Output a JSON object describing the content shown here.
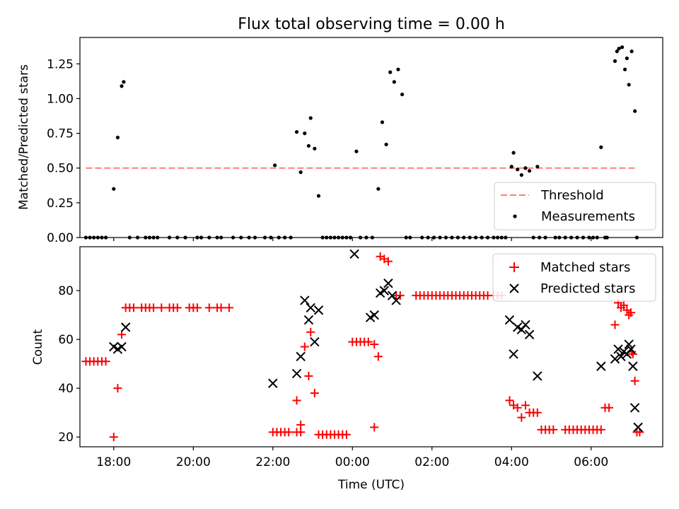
{
  "chart_data": [
    {
      "type": "scatter",
      "title": "Flux total observing time = 0.00 h",
      "xlabel": "",
      "ylabel": "Matched/Predicted stars",
      "x_unit": "hours since 00:00 UTC (negative = previous evening)",
      "xlim": [
        -6.85,
        7.8
      ],
      "ylim": [
        0,
        1.44
      ],
      "yticks": [
        0.0,
        0.25,
        0.5,
        0.75,
        1.0,
        1.25
      ],
      "ytick_labels": [
        "0.00",
        "0.25",
        "0.50",
        "0.75",
        "1.00",
        "1.25"
      ],
      "threshold": {
        "name": "Threshold",
        "value": 0.5,
        "x_range": [
          -6.7,
          7.1
        ],
        "color": "#ff7f7f"
      },
      "series": [
        {
          "name": "Measurements",
          "color": "#000000",
          "marker": "dot",
          "points": [
            [
              -6.7,
              0
            ],
            [
              -6.6,
              0
            ],
            [
              -6.5,
              0
            ],
            [
              -6.4,
              0
            ],
            [
              -6.3,
              0
            ],
            [
              -6.2,
              0
            ],
            [
              -6.0,
              0.35
            ],
            [
              -5.9,
              0.72
            ],
            [
              -5.8,
              1.09
            ],
            [
              -5.75,
              1.12
            ],
            [
              -5.6,
              0
            ],
            [
              -5.4,
              0
            ],
            [
              -5.2,
              0
            ],
            [
              -5.1,
              0
            ],
            [
              -5.0,
              0
            ],
            [
              -4.9,
              0
            ],
            [
              -4.6,
              0
            ],
            [
              -4.4,
              0
            ],
            [
              -4.2,
              0
            ],
            [
              -3.9,
              0
            ],
            [
              -3.8,
              0
            ],
            [
              -3.6,
              0
            ],
            [
              -3.4,
              0
            ],
            [
              -3.3,
              0
            ],
            [
              -3.0,
              0
            ],
            [
              -2.8,
              0
            ],
            [
              -2.6,
              0
            ],
            [
              -2.45,
              0
            ],
            [
              -2.2,
              0
            ],
            [
              -2.05,
              0
            ],
            [
              -1.95,
              0.52
            ],
            [
              -1.85,
              0
            ],
            [
              -1.7,
              0
            ],
            [
              -1.55,
              0
            ],
            [
              -1.4,
              0.76
            ],
            [
              -1.3,
              0.47
            ],
            [
              -1.2,
              0.75
            ],
            [
              -1.1,
              0.66
            ],
            [
              -1.05,
              0.86
            ],
            [
              -0.95,
              0.64
            ],
            [
              -0.85,
              0.3
            ],
            [
              -0.75,
              0
            ],
            [
              -0.65,
              0
            ],
            [
              -0.55,
              0
            ],
            [
              -0.45,
              0
            ],
            [
              -0.35,
              0
            ],
            [
              -0.25,
              0
            ],
            [
              -0.15,
              0
            ],
            [
              -0.05,
              0
            ],
            [
              0.1,
              0.62
            ],
            [
              0.2,
              0
            ],
            [
              0.35,
              0
            ],
            [
              0.5,
              0
            ],
            [
              0.65,
              0.35
            ],
            [
              0.75,
              0.83
            ],
            [
              0.85,
              0.67
            ],
            [
              0.95,
              1.19
            ],
            [
              1.05,
              1.12
            ],
            [
              1.15,
              1.21
            ],
            [
              1.25,
              1.03
            ],
            [
              1.35,
              0
            ],
            [
              1.45,
              0
            ],
            [
              1.75,
              0
            ],
            [
              1.9,
              0
            ],
            [
              2.05,
              0
            ],
            [
              2.2,
              0
            ],
            [
              2.35,
              0
            ],
            [
              2.5,
              0
            ],
            [
              2.65,
              0
            ],
            [
              2.8,
              0
            ],
            [
              2.95,
              0
            ],
            [
              3.1,
              0
            ],
            [
              3.25,
              0
            ],
            [
              3.4,
              0
            ],
            [
              3.55,
              0
            ],
            [
              3.65,
              0
            ],
            [
              3.75,
              0
            ],
            [
              3.85,
              0
            ],
            [
              4.0,
              0.51
            ],
            [
              4.05,
              0.61
            ],
            [
              4.15,
              0.49
            ],
            [
              4.25,
              0.45
            ],
            [
              4.35,
              0.5
            ],
            [
              4.45,
              0.48
            ],
            [
              4.55,
              0
            ],
            [
              4.7,
              0
            ],
            [
              4.65,
              0.51
            ],
            [
              4.85,
              0
            ],
            [
              5.1,
              0
            ],
            [
              5.2,
              0
            ],
            [
              5.35,
              0
            ],
            [
              5.5,
              0
            ],
            [
              5.65,
              0
            ],
            [
              5.8,
              0
            ],
            [
              5.95,
              0
            ],
            [
              6.05,
              0
            ],
            [
              6.15,
              0
            ],
            [
              6.25,
              0.65
            ],
            [
              6.4,
              0
            ],
            [
              6.35,
              0
            ],
            [
              6.6,
              1.27
            ],
            [
              6.65,
              1.34
            ],
            [
              6.7,
              1.36
            ],
            [
              6.78,
              1.37
            ],
            [
              6.85,
              1.21
            ],
            [
              6.9,
              1.29
            ],
            [
              6.95,
              1.1
            ],
            [
              7.02,
              1.34
            ],
            [
              7.1,
              0.91
            ],
            [
              7.15,
              0
            ]
          ]
        }
      ],
      "legend": {
        "placement": "lower-right",
        "entries": [
          "Threshold",
          "Measurements"
        ]
      }
    },
    {
      "type": "scatter",
      "title": "",
      "xlabel": "Time (UTC)",
      "ylabel": "Count",
      "x_unit": "hours since 00:00 UTC (negative = previous evening)",
      "xlim": [
        -6.85,
        7.8
      ],
      "ylim": [
        16,
        98
      ],
      "yticks": [
        20,
        40,
        60,
        80
      ],
      "ytick_labels": [
        "20",
        "40",
        "60",
        "80"
      ],
      "xticks": [
        -6,
        -4,
        -2,
        0,
        2,
        4,
        6
      ],
      "xtick_labels": [
        "18:00",
        "20:00",
        "22:00",
        "00:00",
        "02:00",
        "04:00",
        "06:00"
      ],
      "series": [
        {
          "name": "Matched stars",
          "color": "#ff0000",
          "marker": "plus",
          "points": [
            [
              -6.7,
              51
            ],
            [
              -6.6,
              51
            ],
            [
              -6.5,
              51
            ],
            [
              -6.4,
              51
            ],
            [
              -6.3,
              51
            ],
            [
              -6.2,
              51
            ],
            [
              -6.0,
              20
            ],
            [
              -5.9,
              40
            ],
            [
              -5.8,
              62
            ],
            [
              -5.7,
              73
            ],
            [
              -5.6,
              73
            ],
            [
              -5.5,
              73
            ],
            [
              -5.3,
              73
            ],
            [
              -5.2,
              73
            ],
            [
              -5.1,
              73
            ],
            [
              -5.0,
              73
            ],
            [
              -4.8,
              73
            ],
            [
              -4.6,
              73
            ],
            [
              -4.5,
              73
            ],
            [
              -4.4,
              73
            ],
            [
              -4.1,
              73
            ],
            [
              -4.0,
              73
            ],
            [
              -3.9,
              73
            ],
            [
              -3.6,
              73
            ],
            [
              -3.4,
              73
            ],
            [
              -3.3,
              73
            ],
            [
              -3.1,
              73
            ],
            [
              -2.0,
              22
            ],
            [
              -1.9,
              22
            ],
            [
              -1.8,
              22
            ],
            [
              -1.7,
              22
            ],
            [
              -1.6,
              22
            ],
            [
              -1.4,
              22
            ],
            [
              -1.3,
              22
            ],
            [
              -1.4,
              35
            ],
            [
              -1.3,
              25
            ],
            [
              -1.2,
              57
            ],
            [
              -1.1,
              45
            ],
            [
              -1.05,
              63
            ],
            [
              -0.95,
              38
            ],
            [
              -0.85,
              21
            ],
            [
              -0.75,
              21
            ],
            [
              -0.65,
              21
            ],
            [
              -0.55,
              21
            ],
            [
              -0.45,
              21
            ],
            [
              -0.35,
              21
            ],
            [
              -0.25,
              21
            ],
            [
              -0.15,
              21
            ],
            [
              0.0,
              59
            ],
            [
              0.1,
              59
            ],
            [
              0.2,
              59
            ],
            [
              0.3,
              59
            ],
            [
              0.4,
              59
            ],
            [
              0.55,
              24
            ],
            [
              0.55,
              58
            ],
            [
              0.65,
              53
            ],
            [
              0.7,
              94
            ],
            [
              0.8,
              93
            ],
            [
              0.9,
              92
            ],
            [
              1.1,
              78
            ],
            [
              1.2,
              78
            ],
            [
              1.6,
              78
            ],
            [
              1.7,
              78
            ],
            [
              1.8,
              78
            ],
            [
              1.9,
              78
            ],
            [
              2.0,
              78
            ],
            [
              2.1,
              78
            ],
            [
              2.2,
              78
            ],
            [
              2.3,
              78
            ],
            [
              2.4,
              78
            ],
            [
              2.5,
              78
            ],
            [
              2.6,
              78
            ],
            [
              2.7,
              78
            ],
            [
              2.8,
              78
            ],
            [
              2.9,
              78
            ],
            [
              3.0,
              78
            ],
            [
              3.1,
              78
            ],
            [
              3.2,
              78
            ],
            [
              3.3,
              78
            ],
            [
              3.4,
              78
            ],
            [
              3.55,
              78
            ],
            [
              3.65,
              78
            ],
            [
              3.75,
              78
            ],
            [
              3.95,
              35
            ],
            [
              4.05,
              33
            ],
            [
              4.15,
              32
            ],
            [
              4.25,
              28
            ],
            [
              4.35,
              33
            ],
            [
              4.45,
              30
            ],
            [
              4.55,
              30
            ],
            [
              4.65,
              30
            ],
            [
              4.75,
              23
            ],
            [
              4.85,
              23
            ],
            [
              4.95,
              23
            ],
            [
              5.05,
              23
            ],
            [
              5.35,
              23
            ],
            [
              5.45,
              23
            ],
            [
              5.55,
              23
            ],
            [
              5.65,
              23
            ],
            [
              5.75,
              23
            ],
            [
              5.85,
              23
            ],
            [
              5.95,
              23
            ],
            [
              6.05,
              23
            ],
            [
              6.15,
              23
            ],
            [
              6.25,
              23
            ],
            [
              6.35,
              32
            ],
            [
              6.45,
              32
            ],
            [
              6.6,
              66
            ],
            [
              6.68,
              75
            ],
            [
              6.75,
              73
            ],
            [
              6.82,
              74
            ],
            [
              6.9,
              72
            ],
            [
              6.95,
              70
            ],
            [
              7.0,
              71
            ],
            [
              7.02,
              55
            ],
            [
              7.05,
              54
            ],
            [
              7.1,
              43
            ],
            [
              7.15,
              22
            ],
            [
              7.22,
              22
            ]
          ]
        },
        {
          "name": "Predicted stars",
          "color": "#000000",
          "marker": "x",
          "points": [
            [
              -6.0,
              57
            ],
            [
              -5.9,
              56
            ],
            [
              -5.8,
              57
            ],
            [
              -5.7,
              65
            ],
            [
              -2.0,
              42
            ],
            [
              -1.4,
              46
            ],
            [
              -1.3,
              53
            ],
            [
              -1.2,
              76
            ],
            [
              -1.1,
              68
            ],
            [
              -1.05,
              73
            ],
            [
              -0.95,
              59
            ],
            [
              -0.85,
              72
            ],
            [
              0.05,
              95
            ],
            [
              0.45,
              69
            ],
            [
              0.55,
              70
            ],
            [
              0.7,
              79
            ],
            [
              0.8,
              80
            ],
            [
              0.9,
              83
            ],
            [
              1.0,
              78
            ],
            [
              1.1,
              76
            ],
            [
              3.95,
              68
            ],
            [
              4.05,
              54
            ],
            [
              4.15,
              65
            ],
            [
              4.25,
              64
            ],
            [
              4.35,
              66
            ],
            [
              4.45,
              62
            ],
            [
              4.65,
              45
            ],
            [
              6.25,
              49
            ],
            [
              6.6,
              52
            ],
            [
              6.68,
              56
            ],
            [
              6.75,
              53
            ],
            [
              6.82,
              55
            ],
            [
              6.9,
              54
            ],
            [
              6.95,
              58
            ],
            [
              7.0,
              56
            ],
            [
              7.05,
              49
            ],
            [
              7.1,
              32
            ],
            [
              7.18,
              24
            ]
          ]
        }
      ],
      "legend": {
        "placement": "upper-right",
        "entries": [
          "Matched stars",
          "Predicted stars"
        ]
      }
    }
  ]
}
